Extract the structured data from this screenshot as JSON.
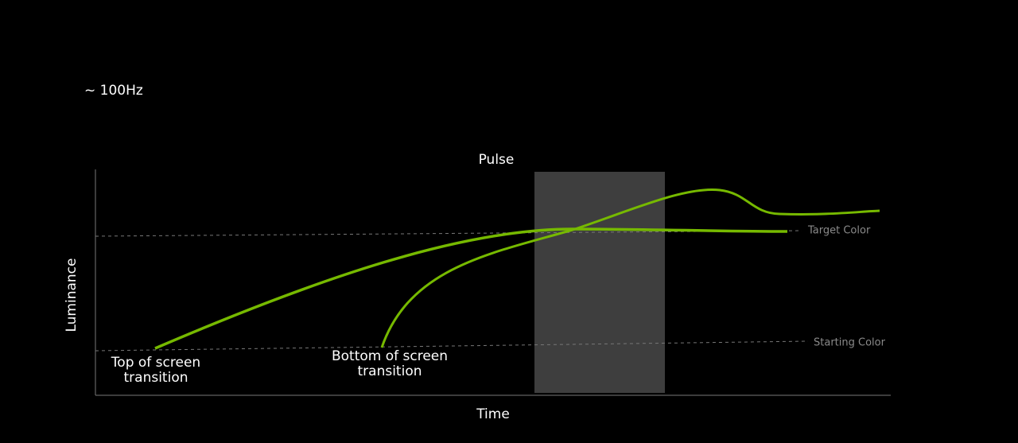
{
  "header": {
    "title": "~ 100Hz"
  },
  "diagram": {
    "pulse_label": "Pulse",
    "y_axis_label": "Luminance",
    "x_axis_label": "Time",
    "reference_lines": [
      {
        "label": "Target Color"
      },
      {
        "label": "Starting Color"
      }
    ],
    "annotations": [
      {
        "lines": [
          "Top of screen",
          "transition"
        ]
      },
      {
        "lines": [
          "Bottom of screen",
          "transition"
        ]
      }
    ]
  }
}
